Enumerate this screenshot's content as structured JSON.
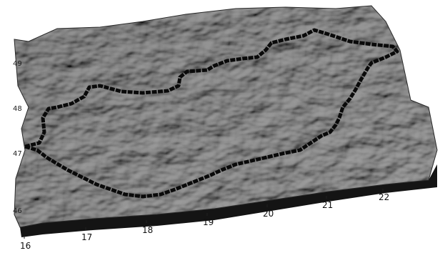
{
  "map": {
    "x_ticks": [
      "16",
      "17",
      "18",
      "19",
      "20",
      "21",
      "22"
    ],
    "y_ticks": [
      "46",
      "47",
      "48",
      "49"
    ],
    "border_color": "#0a0a0a",
    "surface_color": "#8a8a8a",
    "surface_shade": "#3a3a3a",
    "side_color": "#1a1a1a"
  }
}
